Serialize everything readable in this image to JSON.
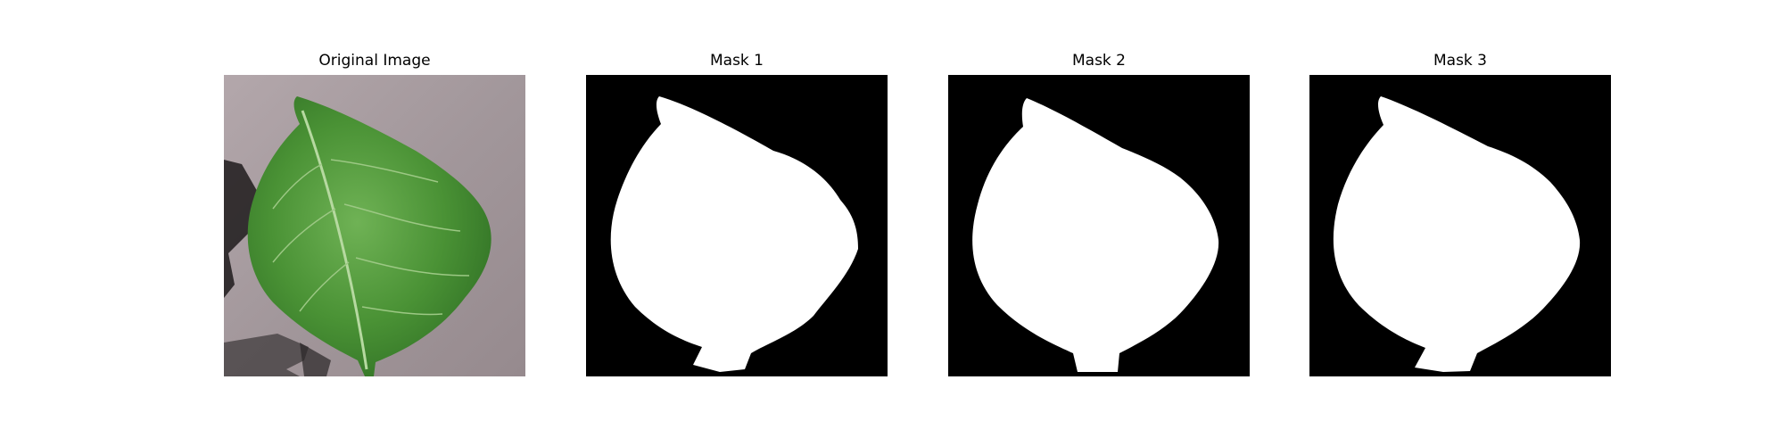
{
  "panels": [
    {
      "title": "Original Image",
      "kind": "photo"
    },
    {
      "title": "Mask 1",
      "kind": "mask"
    },
    {
      "title": "Mask 2",
      "kind": "mask"
    },
    {
      "title": "Mask 3",
      "kind": "mask"
    }
  ],
  "colors": {
    "background": "#ffffff",
    "mask_foreground": "#ffffff",
    "mask_background": "#000000",
    "photo_background": "#a89c9f",
    "leaf": "#4f9a3a"
  }
}
